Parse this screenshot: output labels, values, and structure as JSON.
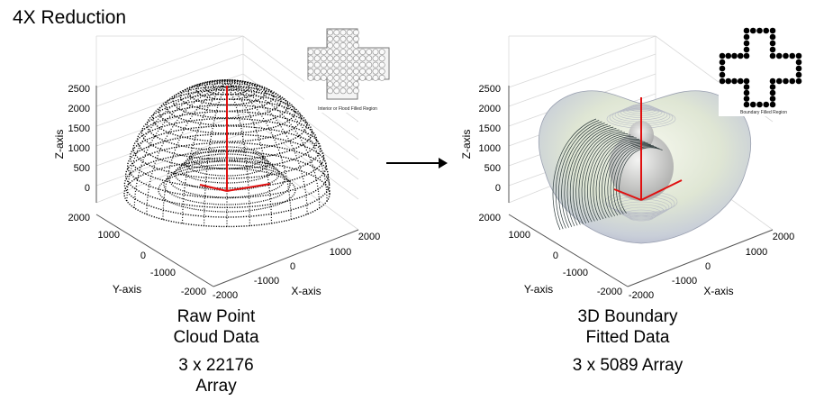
{
  "title": "4X Reduction",
  "left_panel": {
    "inset_caption": "Interior or Flood Filled Region",
    "z_axis_label": "Z-axis",
    "y_axis_label": "Y-axis",
    "x_axis_label": "X-axis",
    "z_ticks": [
      "2500",
      "2000",
      "1500",
      "1000",
      "500",
      "0"
    ],
    "y_ticks": [
      "2000",
      "1000",
      "0",
      "-1000",
      "-2000"
    ],
    "x_ticks": [
      "-2000",
      "-1000",
      "0",
      "1000",
      "2000"
    ],
    "caption_line1": "Raw Point",
    "caption_line2": "Cloud Data",
    "array_line1": "3 x 22176",
    "array_line2": "Array"
  },
  "right_panel": {
    "inset_caption": "Boundary Filled Region",
    "z_axis_label": "Z-axis",
    "y_axis_label": "Y-axis",
    "x_axis_label": "X-axis",
    "z_ticks": [
      "2500",
      "2000",
      "1500",
      "1000",
      "500",
      "0"
    ],
    "y_ticks": [
      "2000",
      "1000",
      "0",
      "-1000",
      "-2000"
    ],
    "x_ticks": [
      "-2000",
      "-1000",
      "0",
      "1000",
      "2000"
    ],
    "caption_line1": "3D Boundary",
    "caption_line2": "Fitted Data",
    "array_line1": "3 x 5089 Array"
  },
  "colors": {
    "axis_red": "#e01010",
    "points": "#000000",
    "grid": "#d9d9d9"
  }
}
